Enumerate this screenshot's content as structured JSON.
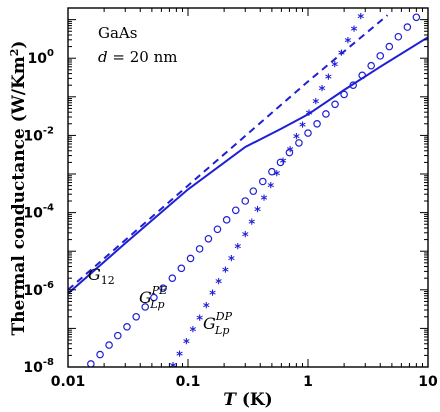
{
  "chart_data": {
    "type": "line",
    "xscale": "log",
    "yscale": "log",
    "xlim": [
      0.01,
      10
    ],
    "ylim": [
      1e-08,
      20
    ],
    "xlabel": "T (K)",
    "ylabel": "Thermal conductance (W/Km²)",
    "x_ticks": [
      {
        "value": 0.01,
        "label": "0.01"
      },
      {
        "value": 0.1,
        "label": "0.1"
      },
      {
        "value": 1,
        "label": "1"
      },
      {
        "value": 10,
        "label": "10"
      }
    ],
    "y_ticks": [
      {
        "value": 1e-08,
        "base": "10",
        "exp": "-8"
      },
      {
        "value": 1e-06,
        "base": "10",
        "exp": "-6"
      },
      {
        "value": 0.0001,
        "base": "10",
        "exp": "-4"
      },
      {
        "value": 0.01,
        "base": "10",
        "exp": "-2"
      },
      {
        "value": 1,
        "base": "10",
        "exp": "0"
      }
    ],
    "annotations": {
      "material": "GaAs",
      "thickness_var": "d",
      "thickness_value": " = 20 nm"
    },
    "series": [
      {
        "name": "G12",
        "label_main": "G",
        "label_sub": "12",
        "label_sup": "",
        "style": "solid",
        "points": [
          [
            0.01,
            8e-07
          ],
          [
            0.03,
            1.6e-05
          ],
          [
            0.1,
            0.0004
          ],
          [
            0.3,
            0.005
          ],
          [
            0.6,
            0.015
          ],
          [
            1,
            0.035
          ],
          [
            2,
            0.15
          ],
          [
            4,
            0.6
          ],
          [
            10,
            3.5
          ]
        ]
      },
      {
        "name": "dashed",
        "style": "dashed",
        "points": [
          [
            0.01,
            1e-06
          ],
          [
            0.1,
            0.0005
          ],
          [
            1,
            0.25
          ],
          [
            3,
            4.3
          ],
          [
            4.6,
            13
          ]
        ]
      },
      {
        "name": "GLpPE",
        "label_main": "G",
        "label_sub": "Lp",
        "label_sup": "PE",
        "style": "circles",
        "points": [
          [
            0.013,
            7e-09
          ],
          [
            0.0155,
            1.2e-08
          ],
          [
            0.0185,
            2.1e-08
          ],
          [
            0.022,
            3.7e-08
          ],
          [
            0.026,
            6.5e-08
          ],
          [
            0.031,
            1.1e-07
          ],
          [
            0.037,
            2e-07
          ],
          [
            0.044,
            3.6e-07
          ],
          [
            0.052,
            6.3e-07
          ],
          [
            0.062,
            1.1e-06
          ],
          [
            0.074,
            2e-06
          ],
          [
            0.088,
            3.6e-06
          ],
          [
            0.105,
            6.5e-06
          ],
          [
            0.125,
            1.15e-05
          ],
          [
            0.148,
            2.1e-05
          ],
          [
            0.176,
            3.7e-05
          ],
          [
            0.21,
            6.5e-05
          ],
          [
            0.25,
            0.000115
          ],
          [
            0.3,
            0.0002
          ],
          [
            0.35,
            0.00036
          ],
          [
            0.42,
            0.00064
          ],
          [
            0.5,
            0.00115
          ],
          [
            0.59,
            0.002
          ],
          [
            0.7,
            0.0036
          ],
          [
            0.84,
            0.0064
          ],
          [
            1,
            0.0115
          ],
          [
            1.19,
            0.02
          ],
          [
            1.41,
            0.036
          ],
          [
            1.68,
            0.064
          ],
          [
            2,
            0.115
          ],
          [
            2.38,
            0.2
          ],
          [
            2.83,
            0.36
          ],
          [
            3.36,
            0.64
          ],
          [
            4,
            1.15
          ],
          [
            4.76,
            2
          ],
          [
            5.66,
            3.6
          ],
          [
            6.73,
            6.4
          ],
          [
            8,
            11.5
          ]
        ]
      },
      {
        "name": "GLpDP",
        "label_main": "G",
        "label_sub": "Lp",
        "label_sup": "DP",
        "style": "stars",
        "points": [
          [
            0.075,
            1e-08
          ],
          [
            0.085,
            2e-08
          ],
          [
            0.097,
            4.2e-08
          ],
          [
            0.11,
            8.5e-08
          ],
          [
            0.125,
            1.7e-07
          ],
          [
            0.142,
            3.6e-07
          ],
          [
            0.16,
            7.5e-07
          ],
          [
            0.18,
            1.5e-06
          ],
          [
            0.205,
            3e-06
          ],
          [
            0.23,
            6e-06
          ],
          [
            0.26,
            1.2e-05
          ],
          [
            0.3,
            2.5e-05
          ],
          [
            0.34,
            5.3e-05
          ],
          [
            0.38,
            0.00011
          ],
          [
            0.43,
            0.00022
          ],
          [
            0.49,
            0.00046
          ],
          [
            0.55,
            0.00095
          ],
          [
            0.62,
            0.002
          ],
          [
            0.71,
            0.004
          ],
          [
            0.8,
            0.0085
          ],
          [
            0.9,
            0.017
          ],
          [
            1.02,
            0.035
          ],
          [
            1.16,
            0.07
          ],
          [
            1.31,
            0.15
          ],
          [
            1.48,
            0.3
          ],
          [
            1.67,
            0.62
          ],
          [
            1.9,
            1.25
          ],
          [
            2.15,
            2.6
          ],
          [
            2.42,
            5.3
          ],
          [
            2.75,
            11
          ]
        ]
      }
    ]
  },
  "style": {
    "series_color": "#1f1fd6",
    "axis_color": "#000000"
  }
}
